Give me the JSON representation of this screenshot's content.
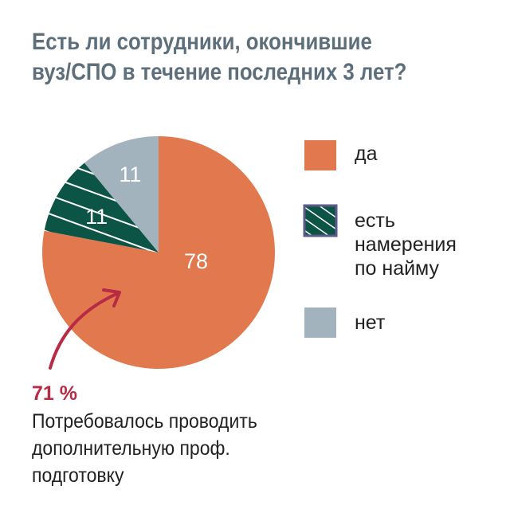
{
  "chart_data": {
    "type": "pie",
    "title": "Есть ли сотрудники, окончившие вуз/СПО в течение последних 3 лет?",
    "title_lines": [
      "Есть ли сотрудники, окончившие",
      "вуз/СПО в течение последних 3 лет?"
    ],
    "slices": [
      {
        "name": "да",
        "value": 78,
        "label": "78",
        "color": "#e2784e"
      },
      {
        "name": "есть намерения по найму",
        "value": 11,
        "label": "11",
        "color": "#0b5446",
        "pattern": "white diagonal stripes"
      },
      {
        "name": "нет",
        "value": 11,
        "label": "11",
        "color": "#a3b3bd"
      }
    ],
    "legend": {
      "placement": "right",
      "items": [
        "да",
        "есть намерения по найму",
        "нет"
      ],
      "item_lines": [
        [
          "да"
        ],
        [
          "есть",
          "намерения",
          "по найму"
        ],
        [
          "нет"
        ]
      ]
    },
    "start_angle": "12 o'clock, clockwise",
    "annotation": {
      "value": "71 %",
      "lines": [
        "Потребовалось проводить",
        "дополнительную проф.",
        "подготовку"
      ],
      "arrow_color": "#b82b45"
    },
    "title_color": "#5e6f7c"
  }
}
